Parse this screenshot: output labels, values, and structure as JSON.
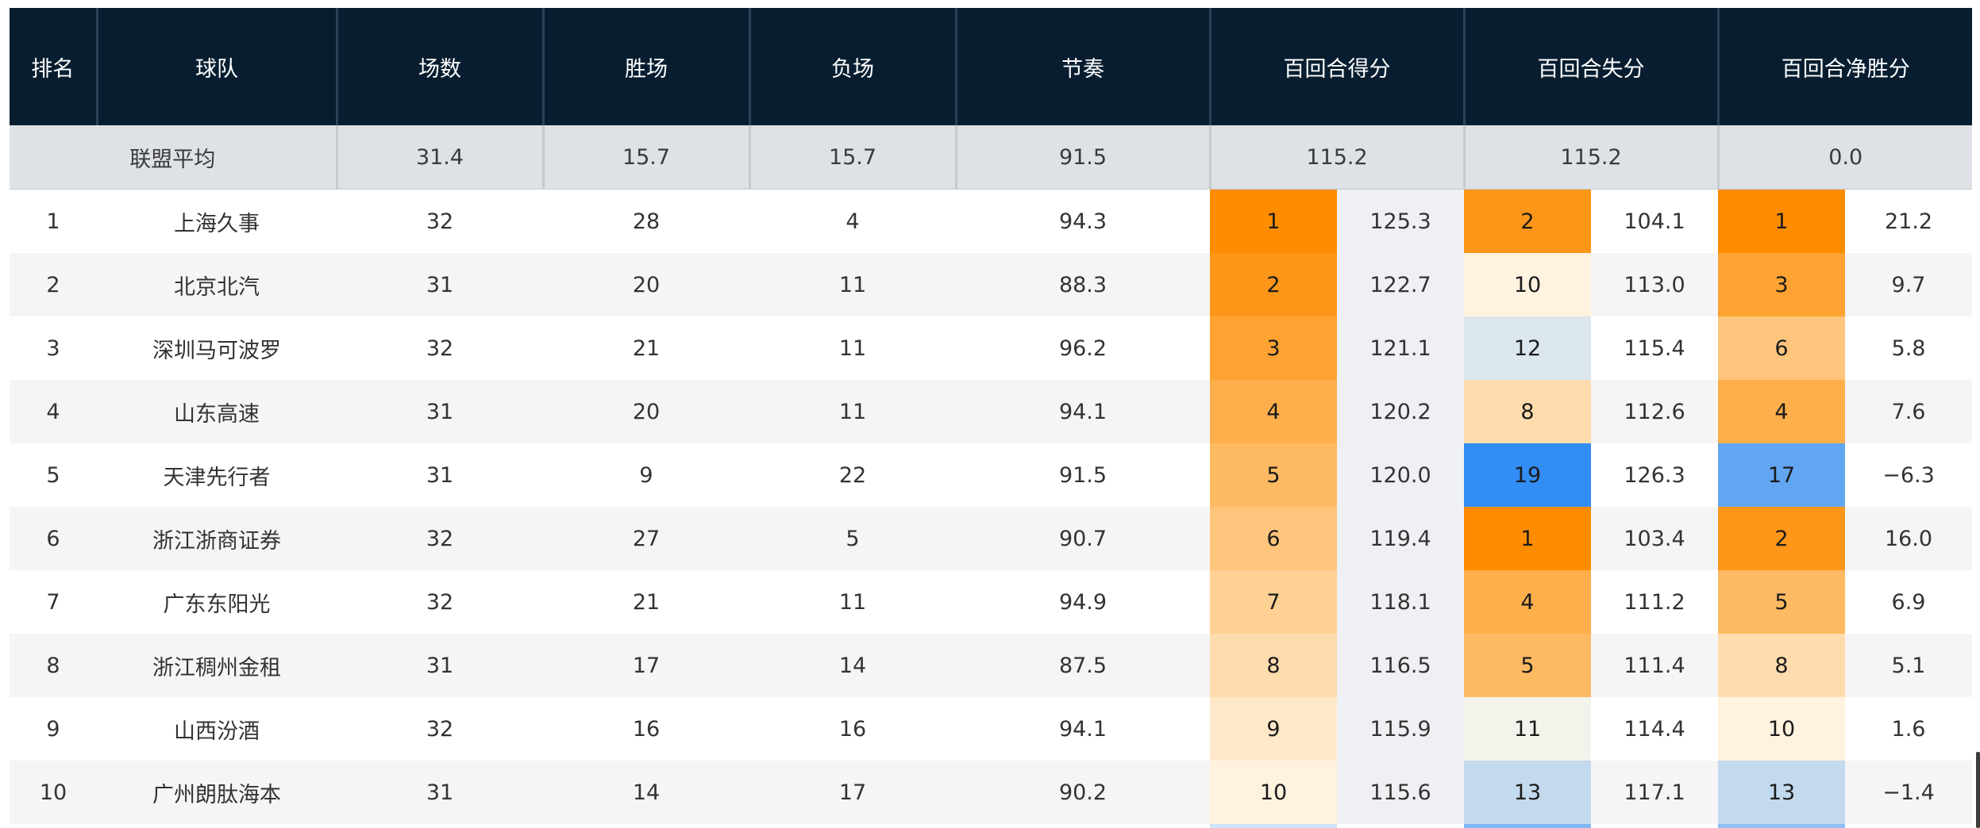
{
  "header": {
    "rank": "排名",
    "team": "球队",
    "games": "场数",
    "wins": "胜场",
    "losses": "负场",
    "pace": "节奏",
    "off": "百回合得分",
    "def": "百回合失分",
    "net": "百回合净胜分"
  },
  "league_avg": {
    "label": "联盟平均",
    "games": "31.4",
    "wins": "15.7",
    "losses": "15.7",
    "pace": "91.5",
    "off": "115.2",
    "def": "115.2",
    "net": "0.0"
  },
  "rows": [
    {
      "rank": "1",
      "team": "上海久事",
      "games": "32",
      "wins": "28",
      "losses": "4",
      "pace": "94.3",
      "off_rank": "1",
      "off": "125.3",
      "def_rank": "2",
      "def": "104.1",
      "net_rank": "1",
      "net": "21.2"
    },
    {
      "rank": "2",
      "team": "北京北汽",
      "games": "31",
      "wins": "20",
      "losses": "11",
      "pace": "88.3",
      "off_rank": "2",
      "off": "122.7",
      "def_rank": "10",
      "def": "113.0",
      "net_rank": "3",
      "net": "9.7"
    },
    {
      "rank": "3",
      "team": "深圳马可波罗",
      "games": "32",
      "wins": "21",
      "losses": "11",
      "pace": "96.2",
      "off_rank": "3",
      "off": "121.1",
      "def_rank": "12",
      "def": "115.4",
      "net_rank": "6",
      "net": "5.8"
    },
    {
      "rank": "4",
      "team": "山东高速",
      "games": "31",
      "wins": "20",
      "losses": "11",
      "pace": "94.1",
      "off_rank": "4",
      "off": "120.2",
      "def_rank": "8",
      "def": "112.6",
      "net_rank": "4",
      "net": "7.6"
    },
    {
      "rank": "5",
      "team": "天津先行者",
      "games": "31",
      "wins": "9",
      "losses": "22",
      "pace": "91.5",
      "off_rank": "5",
      "off": "120.0",
      "def_rank": "19",
      "def": "126.3",
      "net_rank": "17",
      "net": "−6.3"
    },
    {
      "rank": "6",
      "team": "浙江浙商证券",
      "games": "32",
      "wins": "27",
      "losses": "5",
      "pace": "90.7",
      "off_rank": "6",
      "off": "119.4",
      "def_rank": "1",
      "def": "103.4",
      "net_rank": "2",
      "net": "16.0"
    },
    {
      "rank": "7",
      "team": "广东东阳光",
      "games": "32",
      "wins": "21",
      "losses": "11",
      "pace": "94.9",
      "off_rank": "7",
      "off": "118.1",
      "def_rank": "4",
      "def": "111.2",
      "net_rank": "5",
      "net": "6.9"
    },
    {
      "rank": "8",
      "team": "浙江稠州金租",
      "games": "31",
      "wins": "17",
      "losses": "14",
      "pace": "87.5",
      "off_rank": "8",
      "off": "116.5",
      "def_rank": "5",
      "def": "111.4",
      "net_rank": "8",
      "net": "5.1"
    },
    {
      "rank": "9",
      "team": "山西汾酒",
      "games": "32",
      "wins": "16",
      "losses": "16",
      "pace": "94.1",
      "off_rank": "9",
      "off": "115.9",
      "def_rank": "11",
      "def": "114.4",
      "net_rank": "10",
      "net": "1.6"
    },
    {
      "rank": "10",
      "team": "广州朗肽海本",
      "games": "31",
      "wins": "14",
      "losses": "17",
      "pace": "90.2",
      "off_rank": "10",
      "off": "115.6",
      "def_rank": "13",
      "def": "117.1",
      "net_rank": "13",
      "net": "−1.4"
    }
  ],
  "rank_scale": {
    "total_teams": 20,
    "good_color": "#fe8c00",
    "neutral_color": "#fff9ec",
    "bad_color": "#1a80f5"
  }
}
